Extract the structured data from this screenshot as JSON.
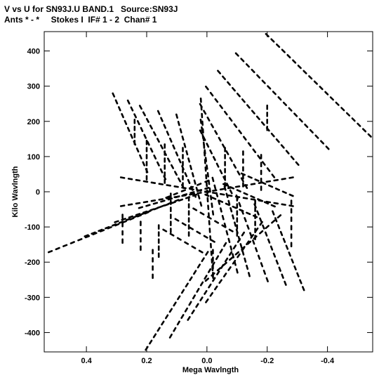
{
  "header": {
    "line1": "V vs U for SN93J.U BAND.1   Source:SN93J",
    "line2": "Ants * - *     Stokes I  IF# 1 - 2  Chan# 1"
  },
  "chart_data": {
    "type": "scatter",
    "title": "V vs U for SN93J.U BAND.1   Source:SN93J",
    "subtitle": "Ants * - *     Stokes I  IF# 1 - 2  Chan# 1",
    "xlabel": "Mega Wavlngth",
    "ylabel": "Kilo Wavlngth",
    "xlim": [
      0.54,
      -0.55
    ],
    "ylim": [
      -455,
      455
    ],
    "x_ticks": [
      0.4,
      0.2,
      0.0,
      -0.2,
      -0.4
    ],
    "x_tick_labels": [
      "0.4",
      "0.2",
      "0.0",
      "-0.2",
      "-0.4"
    ],
    "y_ticks": [
      400,
      300,
      200,
      100,
      0,
      -100,
      -200,
      -300,
      -400
    ],
    "y_tick_labels": [
      "400",
      "300",
      "200",
      "100",
      "0",
      "-100",
      "-200",
      "-300",
      "-400"
    ],
    "grid": false,
    "legend": "none",
    "color": "#000000",
    "tracks": [
      {
        "x": [
          -0.2,
          -0.54
        ],
        "y": [
          445,
          160
        ]
      },
      {
        "x": [
          -0.1,
          -0.4
        ],
        "y": [
          390,
          125
        ]
      },
      {
        "x": [
          -0.04,
          -0.3
        ],
        "y": [
          340,
          80
        ]
      },
      {
        "x": [
          0.0,
          -0.22
        ],
        "y": [
          295,
          45
        ]
      },
      {
        "x": [
          0.02,
          -0.13
        ],
        "y": [
          245,
          15
        ]
      },
      {
        "x": [
          0.02,
          -0.08
        ],
        "y": [
          170,
          0
        ]
      },
      {
        "x": [
          0.31,
          0.2
        ],
        "y": [
          275,
          60
        ]
      },
      {
        "x": [
          0.26,
          0.14
        ],
        "y": [
          255,
          40
        ]
      },
      {
        "x": [
          0.22,
          0.08
        ],
        "y": [
          240,
          15
        ]
      },
      {
        "x": [
          0.16,
          0.04
        ],
        "y": [
          225,
          -10
        ]
      },
      {
        "x": [
          0.1,
          0.02
        ],
        "y": [
          215,
          -35
        ]
      },
      {
        "x": [
          0.02,
          -0.02
        ],
        "y": [
          200,
          -60
        ]
      },
      {
        "x": [
          -0.2,
          -0.2
        ],
        "y": [
          240,
          180
        ]
      },
      {
        "x": [
          -0.12,
          -0.28
        ],
        "y": [
          50,
          -10
        ]
      },
      {
        "x": [
          -0.06,
          -0.22
        ],
        "y": [
          20,
          -40
        ]
      },
      {
        "x": [
          0.0,
          -0.16
        ],
        "y": [
          -10,
          -70
        ]
      },
      {
        "x": [
          0.04,
          -0.08
        ],
        "y": [
          -50,
          -110
        ]
      },
      {
        "x": [
          0.1,
          -0.02
        ],
        "y": [
          -80,
          -140
        ]
      },
      {
        "x": [
          0.14,
          0.02
        ],
        "y": [
          -110,
          -170
        ]
      },
      {
        "x": [
          -0.02,
          -0.02
        ],
        "y": [
          -170,
          -235
        ]
      },
      {
        "x": [
          0.52,
          0.2
        ],
        "y": [
          -170,
          -60
        ]
      },
      {
        "x": [
          0.4,
          0.1
        ],
        "y": [
          -125,
          -25
        ]
      },
      {
        "x": [
          0.3,
          0.04
        ],
        "y": [
          -85,
          -10
        ]
      },
      {
        "x": [
          0.22,
          0.0
        ],
        "y": [
          -45,
          10
        ]
      },
      {
        "x": [
          0.13,
          0.0
        ],
        "y": [
          -15,
          30
        ]
      },
      {
        "x": [
          -0.32,
          -0.22
        ],
        "y": [
          -275,
          -60
        ]
      },
      {
        "x": [
          -0.26,
          -0.16
        ],
        "y": [
          -260,
          -40
        ]
      },
      {
        "x": [
          -0.2,
          -0.1
        ],
        "y": [
          -250,
          -15
        ]
      },
      {
        "x": [
          -0.14,
          -0.06
        ],
        "y": [
          -235,
          10
        ]
      },
      {
        "x": [
          -0.1,
          -0.02
        ],
        "y": [
          -225,
          35
        ]
      },
      {
        "x": [
          0.2,
          0.0
        ],
        "y": [
          -445,
          -175
        ]
      },
      {
        "x": [
          0.12,
          -0.06
        ],
        "y": [
          -410,
          -150
        ]
      },
      {
        "x": [
          0.06,
          -0.12
        ],
        "y": [
          -360,
          -120
        ]
      },
      {
        "x": [
          0.0,
          -0.18
        ],
        "y": [
          -310,
          -90
        ]
      },
      {
        "x": [
          0.0,
          -0.24
        ],
        "y": [
          -250,
          -70
        ]
      },
      {
        "x": [
          0.18,
          0.18
        ],
        "y": [
          -240,
          -170
        ]
      },
      {
        "x": [
          0.16,
          0.16
        ],
        "y": [
          -180,
          -100
        ]
      },
      {
        "x": [
          0.22,
          0.22
        ],
        "y": [
          -160,
          -90
        ]
      },
      {
        "x": [
          0.28,
          0.28
        ],
        "y": [
          -140,
          -70
        ]
      },
      {
        "x": [
          0.24,
          0.24
        ],
        "y": [
          200,
          140
        ]
      },
      {
        "x": [
          0.2,
          0.2
        ],
        "y": [
          140,
          40
        ]
      },
      {
        "x": [
          0.14,
          0.14
        ],
        "y": [
          130,
          30
        ]
      },
      {
        "x": [
          0.08,
          0.08
        ],
        "y": [
          120,
          20
        ]
      },
      {
        "x": [
          -0.06,
          -0.06
        ],
        "y": [
          120,
          20
        ]
      },
      {
        "x": [
          -0.12,
          -0.12
        ],
        "y": [
          110,
          20
        ]
      },
      {
        "x": [
          -0.18,
          -0.18
        ],
        "y": [
          100,
          10
        ]
      },
      {
        "x": [
          -0.1,
          -0.1
        ],
        "y": [
          -20,
          -120
        ]
      },
      {
        "x": [
          -0.16,
          -0.16
        ],
        "y": [
          -30,
          -130
        ]
      },
      {
        "x": [
          -0.28,
          -0.28
        ],
        "y": [
          -30,
          -150
        ]
      },
      {
        "x": [
          0.06,
          0.06
        ],
        "y": [
          -20,
          -120
        ]
      },
      {
        "x": [
          0.12,
          0.12
        ],
        "y": [
          -10,
          -110
        ]
      },
      {
        "x": [
          0.02,
          -0.02
        ],
        "y": [
          260,
          -240
        ]
      },
      {
        "x": [
          0.28,
          -0.28
        ],
        "y": [
          40,
          -40
        ]
      },
      {
        "x": [
          0.28,
          -0.28
        ],
        "y": [
          -40,
          40
        ]
      }
    ]
  }
}
